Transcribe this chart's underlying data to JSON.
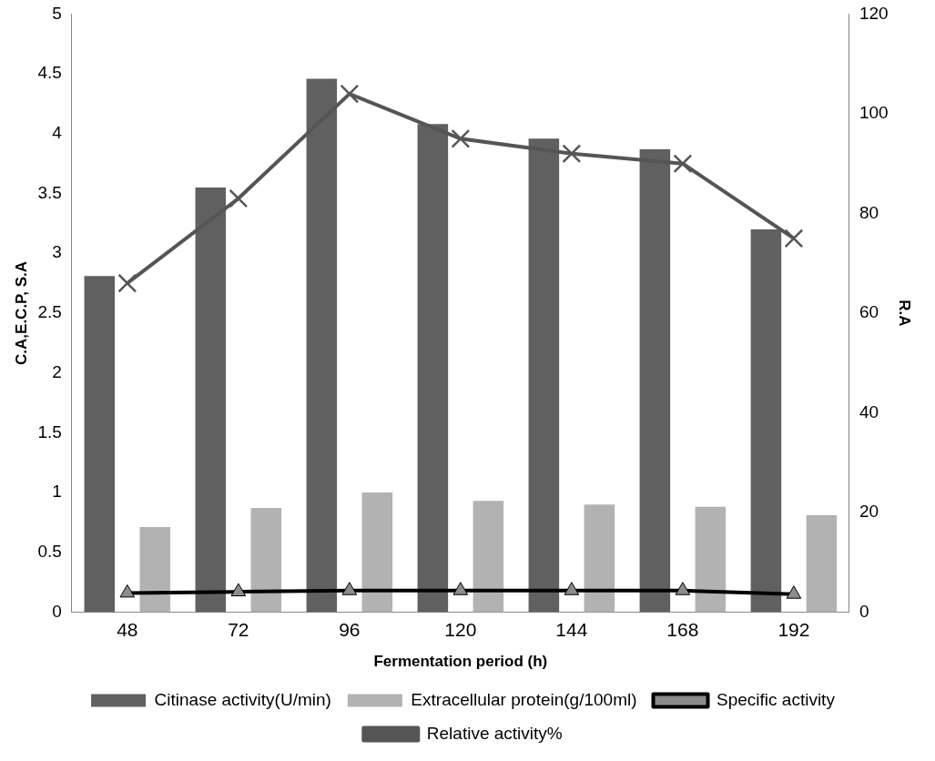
{
  "chart_data": {
    "type": "bar",
    "xlabel": "Fermentation period (h)",
    "ylabel": "C.A,E.C.P, S.A",
    "y2label": "R.A",
    "categories": [
      "48",
      "72",
      "96",
      "120",
      "144",
      "168",
      "192"
    ],
    "series": [
      {
        "name": "Citinase activity(U/min)",
        "color": "#606060",
        "values": [
          2.81,
          3.55,
          4.46,
          4.08,
          3.96,
          3.87,
          3.2
        ]
      },
      {
        "name": "Extracellular protein(g/100ml)",
        "color": "#b2b2b2",
        "values": [
          0.71,
          0.87,
          1.0,
          0.93,
          0.9,
          0.88,
          0.81
        ]
      },
      {
        "name": "Specific activity",
        "type": "line",
        "color": "#000000",
        "marker": "triangle",
        "values": [
          0.16,
          0.17,
          0.18,
          0.18,
          0.18,
          0.18,
          0.15
        ]
      },
      {
        "name": "Relative activity%",
        "type": "line",
        "color": "#555555",
        "marker": "cross",
        "axis": "y2",
        "values": [
          66,
          83,
          104,
          95,
          92,
          90,
          75
        ]
      }
    ],
    "ylim": [
      0,
      5
    ],
    "yticks": [
      0,
      0.5,
      1,
      1.5,
      2,
      2.5,
      3,
      3.5,
      4,
      4.5,
      5
    ],
    "y2lim": [
      0,
      120
    ],
    "y2ticks": [
      0,
      20,
      40,
      60,
      80,
      100,
      120
    ],
    "grid": false,
    "legend": "bottom"
  }
}
